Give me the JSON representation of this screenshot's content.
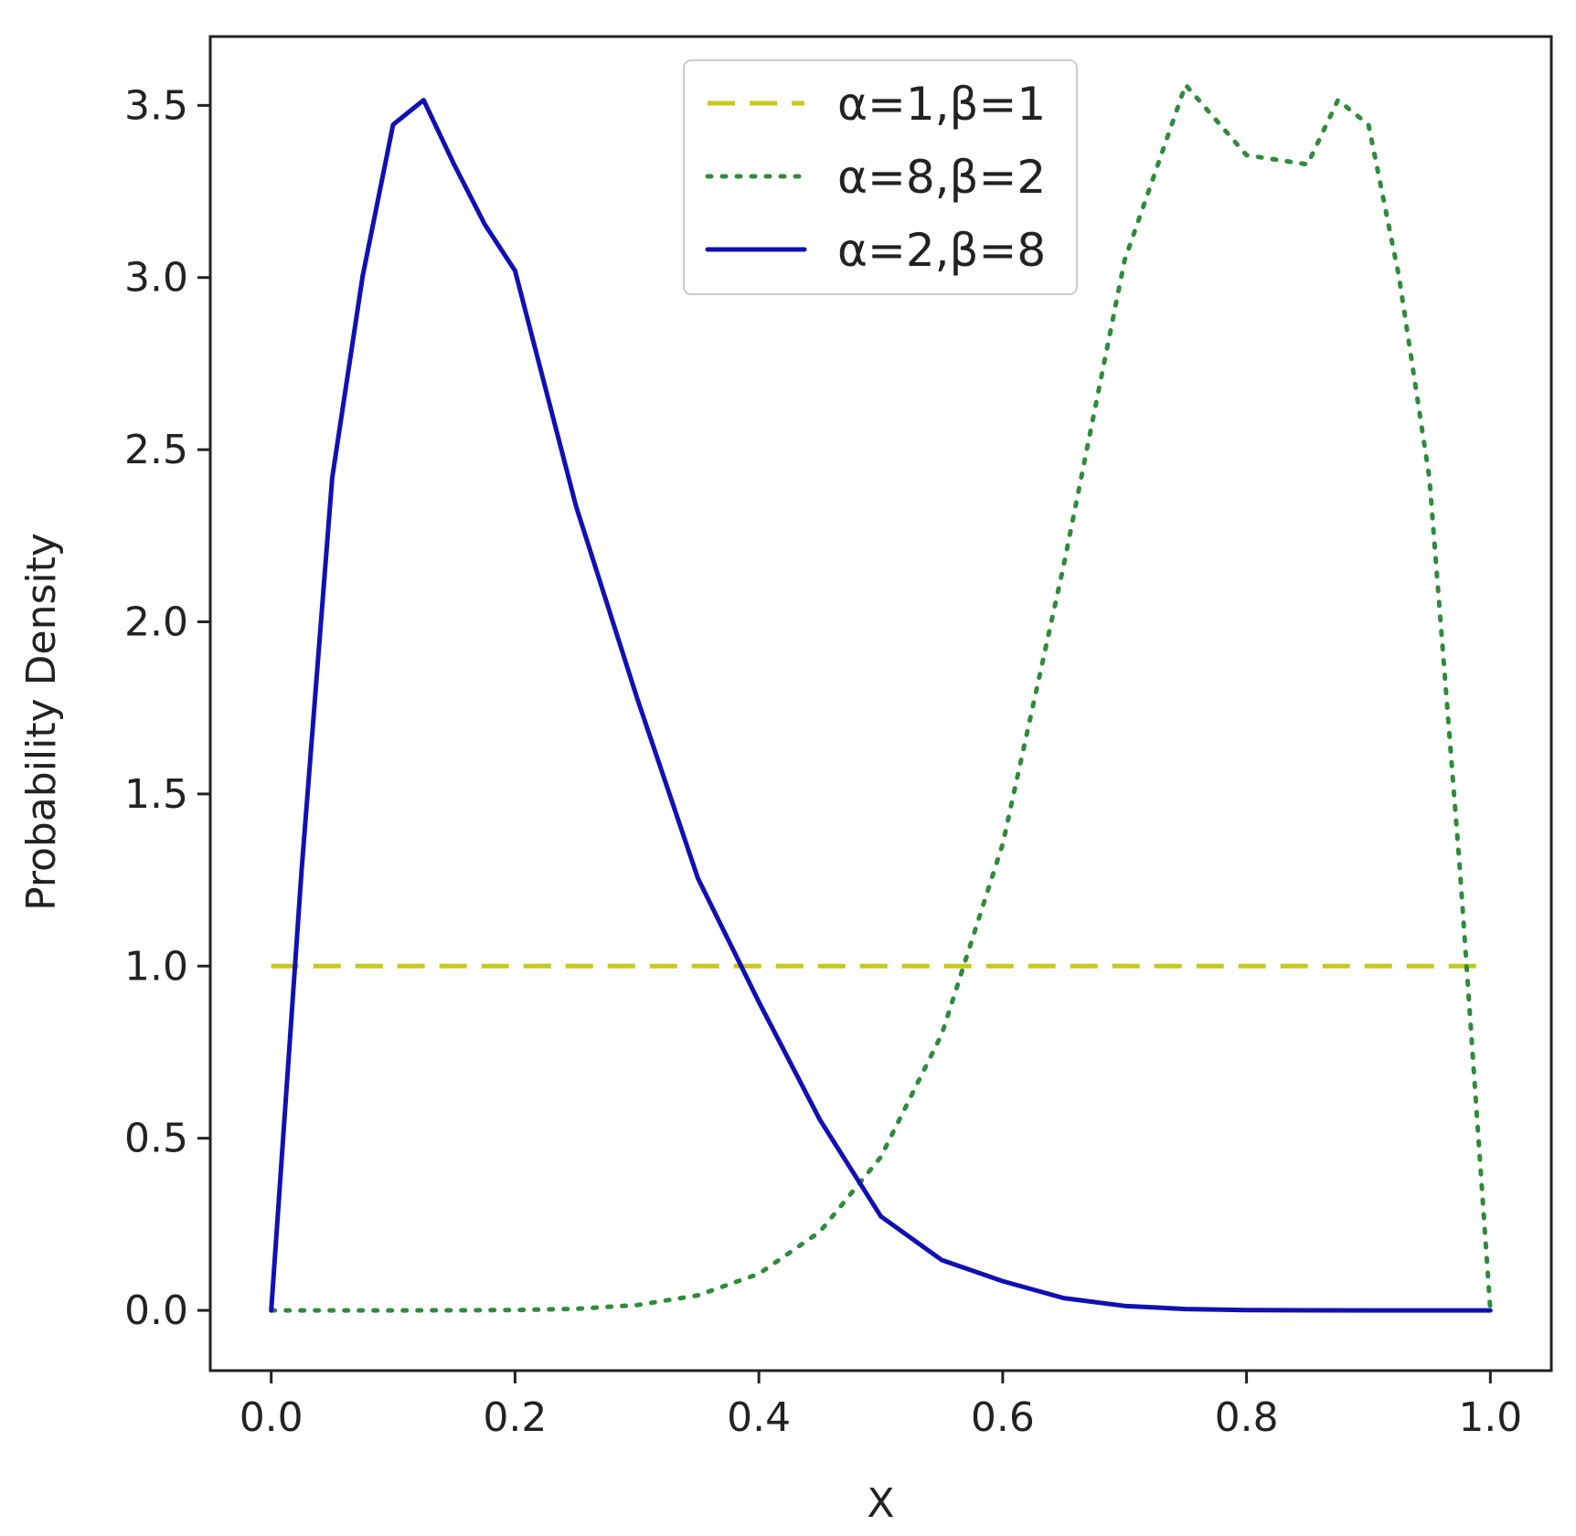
{
  "chart_data": {
    "type": "line",
    "title": "",
    "xlabel": "X",
    "ylabel": "Probability Density",
    "xlim": [
      -0.05,
      1.05
    ],
    "ylim": [
      -0.175,
      3.7
    ],
    "xticks": [
      0.0,
      0.2,
      0.4,
      0.6,
      0.8,
      1.0
    ],
    "xtick_labels": [
      "0.0",
      "0.2",
      "0.4",
      "0.6",
      "0.8",
      "1.0"
    ],
    "yticks": [
      0.0,
      0.5,
      1.0,
      1.5,
      2.0,
      2.5,
      3.0,
      3.5
    ],
    "ytick_labels": [
      "0.0",
      "0.5",
      "1.0",
      "1.5",
      "2.0",
      "2.5",
      "3.0",
      "3.5"
    ],
    "grid": false,
    "legend_position": "top-center",
    "series": [
      {
        "name": "α=1,β=1",
        "style": "dashed",
        "color": "#c8c81e",
        "x": [
          0.0,
          1.0
        ],
        "y": [
          1.0,
          1.0
        ]
      },
      {
        "name": "α=8,β=2",
        "style": "dotted",
        "color": "#2e8b3a",
        "x": [
          0.0,
          0.05,
          0.1,
          0.15,
          0.2,
          0.25,
          0.3,
          0.35,
          0.4,
          0.45,
          0.5,
          0.55,
          0.6,
          0.65,
          0.7,
          0.75,
          0.8,
          0.85,
          0.875,
          0.9,
          0.925,
          0.95,
          0.975,
          1.0
        ],
        "y": [
          0.0,
          0.0,
          0.0,
          0.0001,
          0.0009,
          0.0043,
          0.0154,
          0.0437,
          0.1062,
          0.2281,
          0.4453,
          0.8021,
          1.3548,
          2.1628,
          3.05,
          3.5596,
          3.3554,
          3.3287,
          3.5154,
          3.4441,
          3.0039,
          2.4184,
          1.2811,
          0.0
        ]
      },
      {
        "name": "α=2,β=8",
        "style": "solid",
        "color": "#1010b4",
        "x": [
          0.0,
          0.025,
          0.05,
          0.075,
          0.1,
          0.125,
          0.15,
          0.175,
          0.2,
          0.25,
          0.3,
          0.35,
          0.4,
          0.45,
          0.5,
          0.55,
          0.6,
          0.65,
          0.7,
          0.75,
          0.8,
          0.85,
          0.9,
          0.95,
          1.0
        ],
        "y": [
          0.0,
          1.2811,
          2.4184,
          3.0039,
          3.4441,
          3.5154,
          3.3287,
          3.1552,
          3.0199,
          2.336,
          1.7794,
          1.2548,
          0.896,
          0.5542,
          0.2734,
          0.1462,
          0.0849,
          0.0358,
          0.0129,
          0.0038,
          0.0009,
          0.0001,
          0.0,
          0.0,
          0.0
        ]
      }
    ]
  }
}
